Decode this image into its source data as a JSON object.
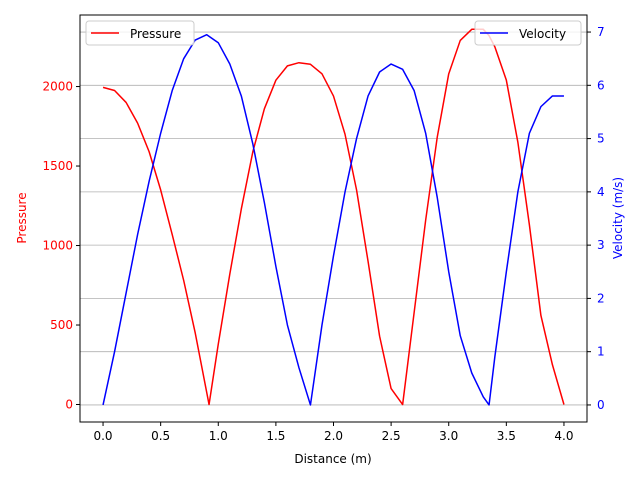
{
  "chart_data": {
    "type": "line",
    "title": "",
    "xlabel": "Distance (m)",
    "y1label": "Pressure",
    "y2label": "Velocity (m/s)",
    "xlim": [
      -0.2,
      4.2
    ],
    "y1lim": [
      -110,
      2450
    ],
    "y2lim": [
      -0.32,
      7.32
    ],
    "xticks": [
      "0.0",
      "0.5",
      "1.0",
      "1.5",
      "2.0",
      "2.5",
      "3.0",
      "3.5",
      "4.0"
    ],
    "y1ticks": [
      "0",
      "500",
      "1000",
      "1500",
      "2000"
    ],
    "y2ticks": [
      "0",
      "1",
      "2",
      "3",
      "4",
      "5",
      "6",
      "7"
    ],
    "grid": "horizontal lines at right-axis ticks",
    "colors": {
      "pressure": "#ff0000",
      "velocity": "#0000ff",
      "axis": "#000000",
      "grid": "#b0b0b0"
    },
    "series": [
      {
        "name": "Pressure",
        "axis": "left",
        "x": [
          0.0,
          0.1,
          0.2,
          0.3,
          0.4,
          0.5,
          0.6,
          0.7,
          0.8,
          0.92,
          1.0,
          1.1,
          1.2,
          1.3,
          1.4,
          1.5,
          1.6,
          1.7,
          1.8,
          1.9,
          2.0,
          2.1,
          2.2,
          2.3,
          2.4,
          2.5,
          2.6,
          2.7,
          2.8,
          2.9,
          3.0,
          3.1,
          3.2,
          3.3,
          3.35,
          3.4,
          3.5,
          3.6,
          3.7,
          3.8,
          3.9,
          4.0
        ],
        "values": [
          1995,
          1975,
          1900,
          1770,
          1590,
          1350,
          1070,
          780,
          450,
          0,
          380,
          820,
          1230,
          1590,
          1860,
          2040,
          2130,
          2150,
          2140,
          2080,
          1940,
          1700,
          1350,
          900,
          430,
          100,
          0,
          580,
          1160,
          1680,
          2080,
          2290,
          2360,
          2360,
          2320,
          2250,
          2040,
          1650,
          1130,
          560,
          250,
          0
        ]
      },
      {
        "name": "Velocity",
        "axis": "right",
        "x": [
          0.0,
          0.1,
          0.2,
          0.3,
          0.4,
          0.5,
          0.6,
          0.7,
          0.8,
          0.9,
          1.0,
          1.1,
          1.2,
          1.3,
          1.4,
          1.5,
          1.6,
          1.7,
          1.8,
          1.9,
          2.0,
          2.1,
          2.2,
          2.3,
          2.4,
          2.5,
          2.6,
          2.7,
          2.8,
          2.9,
          3.0,
          3.1,
          3.2,
          3.3,
          3.35,
          3.4,
          3.5,
          3.6,
          3.7,
          3.8,
          3.9,
          4.0
        ],
        "values": [
          0.0,
          1.0,
          2.1,
          3.2,
          4.2,
          5.1,
          5.9,
          6.5,
          6.85,
          6.95,
          6.8,
          6.4,
          5.8,
          4.9,
          3.8,
          2.6,
          1.5,
          0.7,
          0.0,
          1.5,
          2.8,
          4.0,
          5.0,
          5.8,
          6.25,
          6.4,
          6.3,
          5.9,
          5.1,
          3.9,
          2.5,
          1.3,
          0.6,
          0.15,
          0.0,
          0.9,
          2.5,
          4.0,
          5.1,
          5.6,
          5.8,
          5.8
        ]
      }
    ]
  }
}
